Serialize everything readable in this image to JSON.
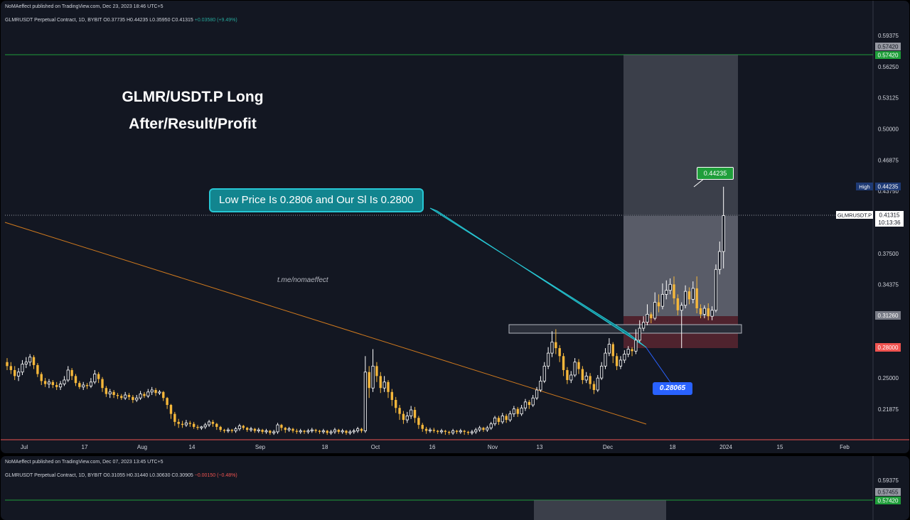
{
  "panel1": {
    "header": "NoMAeffect published on TradingView.com, Dec 23, 2023 18:46 UTC+5",
    "symbol_line": "GLMRUSDT Perpetual Contract, 1D, BYBIT",
    "ohlc": {
      "o": "O0.37735",
      "h": "H0.44235",
      "l": "L0.35950",
      "c": "C0.41315",
      "chg": "+0.03580 (+9.49%)"
    },
    "title_line1": "GLMR/USDT.P Long",
    "title_line2": "After/Result/Profit",
    "callout": "Low Price Is 0.2806 and Our Sl Is 0.2800",
    "telegram": "t.me/nomaeffect",
    "high_label": "0.44235",
    "low_label": "0.28065",
    "axis": {
      "ticks": [
        "0.59375",
        "0.56250",
        "0.53125",
        "0.50000",
        "0.46875",
        "0.43750",
        "0.37500",
        "0.34375",
        "0.25000",
        "0.21875"
      ],
      "badges": {
        "top_gray": "0.57420",
        "top_green": "0.57420",
        "high_tag": "High",
        "high_value": "0.44235",
        "symbol_tag": "GLMRUSDT.P",
        "last_price": "0.41315",
        "countdown": "10:13:36",
        "entry": "0.31260",
        "stop": "0.28000"
      }
    },
    "x_labels": [
      "Jul",
      "17",
      "Aug",
      "14",
      "Sep",
      "18",
      "Oct",
      "16",
      "Nov",
      "13",
      "Dec",
      "18",
      "2024",
      "15",
      "Feb"
    ]
  },
  "panel2": {
    "header": "NoMAeffect published on TradingView.com, Dec 07, 2023 13:45 UTC+5",
    "symbol_line": "GLMRUSDT Perpetual Contract, 1D, BYBIT",
    "ohlc": {
      "o": "O0.31055",
      "h": "H0.31440",
      "l": "L0.30630",
      "c": "C0.30905",
      "chg": "−0.00150 (−0.48%)"
    },
    "axis": {
      "t1": "0.59375",
      "b1": "0.57455",
      "b2": "0.57420"
    }
  },
  "colors": {
    "bg": "#131722",
    "up": "#ffffff",
    "down": "#f5b73b",
    "target": "#1f9e3a",
    "stop": "#ef5350",
    "trend": "#d07a1e",
    "callout": "#12858f"
  },
  "chart_data": {
    "type": "candlestick",
    "title": "",
    "y_range": [
      0.2,
      0.61
    ],
    "y_ticks": [
      0.59375,
      0.5625,
      0.53125,
      0.5,
      0.46875,
      0.4375,
      0.375,
      0.34375,
      0.25,
      0.21875
    ],
    "x_ticks": [
      "Jul",
      "17",
      "Aug",
      "14",
      "Sep",
      "18",
      "Oct",
      "16",
      "Nov",
      "13",
      "Dec",
      "18",
      "2024",
      "15",
      "Feb"
    ],
    "long_position": {
      "entry": 0.3126,
      "target": 0.5742,
      "stop": 0.28
    },
    "marked_high": 0.44235,
    "marked_low": 0.28065,
    "last_price": 0.41315,
    "candles": [
      [
        0.266,
        0.262,
        0.27,
        0.258
      ],
      [
        0.262,
        0.258,
        0.266,
        0.254
      ],
      [
        0.258,
        0.252,
        0.262,
        0.248
      ],
      [
        0.252,
        0.256,
        0.26,
        0.247
      ],
      [
        0.256,
        0.264,
        0.268,
        0.253
      ],
      [
        0.264,
        0.266,
        0.271,
        0.26
      ],
      [
        0.266,
        0.271,
        0.274,
        0.262
      ],
      [
        0.271,
        0.263,
        0.273,
        0.259
      ],
      [
        0.263,
        0.254,
        0.265,
        0.251
      ],
      [
        0.254,
        0.247,
        0.256,
        0.243
      ],
      [
        0.247,
        0.244,
        0.25,
        0.241
      ],
      [
        0.244,
        0.246,
        0.249,
        0.24
      ],
      [
        0.246,
        0.243,
        0.248,
        0.24
      ],
      [
        0.243,
        0.241,
        0.246,
        0.238
      ],
      [
        0.241,
        0.244,
        0.247,
        0.238
      ],
      [
        0.244,
        0.248,
        0.252,
        0.242
      ],
      [
        0.248,
        0.258,
        0.262,
        0.246
      ],
      [
        0.258,
        0.252,
        0.26,
        0.248
      ],
      [
        0.252,
        0.245,
        0.254,
        0.242
      ],
      [
        0.245,
        0.241,
        0.247,
        0.239
      ],
      [
        0.241,
        0.243,
        0.246,
        0.238
      ],
      [
        0.243,
        0.242,
        0.245,
        0.239
      ],
      [
        0.242,
        0.246,
        0.25,
        0.24
      ],
      [
        0.246,
        0.254,
        0.258,
        0.244
      ],
      [
        0.254,
        0.249,
        0.256,
        0.245
      ],
      [
        0.249,
        0.24,
        0.251,
        0.236
      ],
      [
        0.24,
        0.234,
        0.242,
        0.231
      ],
      [
        0.234,
        0.236,
        0.239,
        0.23
      ],
      [
        0.236,
        0.233,
        0.238,
        0.23
      ],
      [
        0.233,
        0.232,
        0.235,
        0.229
      ],
      [
        0.232,
        0.23,
        0.234,
        0.228
      ],
      [
        0.23,
        0.233,
        0.236,
        0.228
      ],
      [
        0.233,
        0.231,
        0.235,
        0.228
      ],
      [
        0.231,
        0.228,
        0.233,
        0.225
      ],
      [
        0.228,
        0.23,
        0.233,
        0.226
      ],
      [
        0.23,
        0.234,
        0.237,
        0.228
      ],
      [
        0.234,
        0.232,
        0.236,
        0.23
      ],
      [
        0.232,
        0.236,
        0.239,
        0.23
      ],
      [
        0.236,
        0.238,
        0.241,
        0.233
      ],
      [
        0.238,
        0.235,
        0.24,
        0.232
      ],
      [
        0.235,
        0.236,
        0.238,
        0.233
      ],
      [
        0.236,
        0.23,
        0.237,
        0.227
      ],
      [
        0.23,
        0.223,
        0.231,
        0.219
      ],
      [
        0.223,
        0.214,
        0.224,
        0.209
      ],
      [
        0.214,
        0.206,
        0.216,
        0.202
      ],
      [
        0.206,
        0.204,
        0.209,
        0.2
      ],
      [
        0.204,
        0.203,
        0.207,
        0.2
      ],
      [
        0.203,
        0.205,
        0.208,
        0.201
      ],
      [
        0.205,
        0.204,
        0.207,
        0.201
      ],
      [
        0.204,
        0.201,
        0.206,
        0.199
      ],
      [
        0.201,
        0.2,
        0.203,
        0.198
      ],
      [
        0.2,
        0.201,
        0.202,
        0.198
      ],
      [
        0.201,
        0.203,
        0.205,
        0.199
      ],
      [
        0.203,
        0.206,
        0.208,
        0.201
      ],
      [
        0.206,
        0.204,
        0.208,
        0.201
      ],
      [
        0.204,
        0.201,
        0.205,
        0.198
      ],
      [
        0.201,
        0.198,
        0.202,
        0.196
      ],
      [
        0.198,
        0.197,
        0.199,
        0.195
      ],
      [
        0.197,
        0.198,
        0.2,
        0.195
      ],
      [
        0.198,
        0.197,
        0.199,
        0.195
      ],
      [
        0.197,
        0.199,
        0.201,
        0.195
      ],
      [
        0.199,
        0.202,
        0.204,
        0.197
      ],
      [
        0.202,
        0.2,
        0.203,
        0.198
      ],
      [
        0.2,
        0.198,
        0.201,
        0.196
      ],
      [
        0.198,
        0.199,
        0.201,
        0.196
      ],
      [
        0.199,
        0.197,
        0.2,
        0.195
      ],
      [
        0.197,
        0.198,
        0.2,
        0.195
      ],
      [
        0.198,
        0.196,
        0.199,
        0.194
      ],
      [
        0.196,
        0.197,
        0.199,
        0.194
      ],
      [
        0.197,
        0.195,
        0.198,
        0.193
      ],
      [
        0.195,
        0.196,
        0.198,
        0.193
      ],
      [
        0.196,
        0.203,
        0.205,
        0.194
      ],
      [
        0.203,
        0.2,
        0.204,
        0.197
      ],
      [
        0.2,
        0.198,
        0.201,
        0.195
      ],
      [
        0.198,
        0.199,
        0.201,
        0.196
      ],
      [
        0.199,
        0.197,
        0.2,
        0.195
      ],
      [
        0.197,
        0.196,
        0.199,
        0.194
      ],
      [
        0.196,
        0.197,
        0.199,
        0.194
      ],
      [
        0.197,
        0.196,
        0.198,
        0.194
      ],
      [
        0.196,
        0.197,
        0.199,
        0.194
      ],
      [
        0.197,
        0.198,
        0.2,
        0.195
      ],
      [
        0.198,
        0.197,
        0.199,
        0.195
      ],
      [
        0.197,
        0.196,
        0.198,
        0.194
      ],
      [
        0.196,
        0.197,
        0.199,
        0.194
      ],
      [
        0.197,
        0.195,
        0.198,
        0.193
      ],
      [
        0.195,
        0.196,
        0.198,
        0.193
      ],
      [
        0.196,
        0.198,
        0.2,
        0.194
      ],
      [
        0.198,
        0.196,
        0.199,
        0.194
      ],
      [
        0.196,
        0.197,
        0.199,
        0.194
      ],
      [
        0.197,
        0.195,
        0.198,
        0.193
      ],
      [
        0.195,
        0.196,
        0.198,
        0.193
      ],
      [
        0.196,
        0.197,
        0.199,
        0.194
      ],
      [
        0.197,
        0.199,
        0.201,
        0.195
      ],
      [
        0.199,
        0.197,
        0.2,
        0.195
      ],
      [
        0.197,
        0.256,
        0.272,
        0.195
      ],
      [
        0.256,
        0.24,
        0.262,
        0.23
      ],
      [
        0.24,
        0.262,
        0.279,
        0.236
      ],
      [
        0.262,
        0.252,
        0.266,
        0.246
      ],
      [
        0.252,
        0.24,
        0.256,
        0.235
      ],
      [
        0.24,
        0.246,
        0.252,
        0.236
      ],
      [
        0.246,
        0.236,
        0.248,
        0.23
      ],
      [
        0.236,
        0.228,
        0.239,
        0.222
      ],
      [
        0.228,
        0.22,
        0.231,
        0.215
      ],
      [
        0.22,
        0.214,
        0.223,
        0.208
      ],
      [
        0.214,
        0.208,
        0.217,
        0.204
      ],
      [
        0.208,
        0.212,
        0.216,
        0.205
      ],
      [
        0.212,
        0.218,
        0.222,
        0.209
      ],
      [
        0.218,
        0.21,
        0.221,
        0.205
      ],
      [
        0.21,
        0.203,
        0.212,
        0.199
      ],
      [
        0.203,
        0.199,
        0.205,
        0.196
      ],
      [
        0.199,
        0.197,
        0.201,
        0.194
      ],
      [
        0.197,
        0.198,
        0.2,
        0.195
      ],
      [
        0.198,
        0.197,
        0.2,
        0.195
      ],
      [
        0.197,
        0.196,
        0.198,
        0.194
      ],
      [
        0.196,
        0.197,
        0.199,
        0.194
      ],
      [
        0.197,
        0.196,
        0.198,
        0.193
      ],
      [
        0.196,
        0.195,
        0.197,
        0.193
      ],
      [
        0.195,
        0.197,
        0.199,
        0.193
      ],
      [
        0.197,
        0.196,
        0.198,
        0.194
      ],
      [
        0.196,
        0.197,
        0.199,
        0.194
      ],
      [
        0.197,
        0.196,
        0.198,
        0.193
      ],
      [
        0.196,
        0.195,
        0.197,
        0.193
      ],
      [
        0.195,
        0.196,
        0.198,
        0.193
      ],
      [
        0.196,
        0.198,
        0.2,
        0.194
      ],
      [
        0.198,
        0.2,
        0.202,
        0.196
      ],
      [
        0.2,
        0.198,
        0.201,
        0.196
      ],
      [
        0.198,
        0.2,
        0.202,
        0.196
      ],
      [
        0.2,
        0.204,
        0.206,
        0.198
      ],
      [
        0.204,
        0.21,
        0.212,
        0.202
      ],
      [
        0.21,
        0.206,
        0.212,
        0.203
      ],
      [
        0.206,
        0.212,
        0.215,
        0.204
      ],
      [
        0.212,
        0.208,
        0.214,
        0.205
      ],
      [
        0.208,
        0.214,
        0.217,
        0.206
      ],
      [
        0.214,
        0.219,
        0.222,
        0.211
      ],
      [
        0.219,
        0.214,
        0.221,
        0.211
      ],
      [
        0.214,
        0.22,
        0.223,
        0.212
      ],
      [
        0.22,
        0.226,
        0.229,
        0.217
      ],
      [
        0.226,
        0.223,
        0.228,
        0.219
      ],
      [
        0.223,
        0.23,
        0.233,
        0.221
      ],
      [
        0.23,
        0.238,
        0.241,
        0.228
      ],
      [
        0.238,
        0.247,
        0.252,
        0.236
      ],
      [
        0.247,
        0.262,
        0.266,
        0.245
      ],
      [
        0.262,
        0.275,
        0.281,
        0.259
      ],
      [
        0.275,
        0.286,
        0.297,
        0.271
      ],
      [
        0.286,
        0.28,
        0.299,
        0.274
      ],
      [
        0.28,
        0.272,
        0.283,
        0.266
      ],
      [
        0.272,
        0.258,
        0.275,
        0.252
      ],
      [
        0.258,
        0.248,
        0.261,
        0.244
      ],
      [
        0.248,
        0.253,
        0.257,
        0.245
      ],
      [
        0.253,
        0.266,
        0.27,
        0.251
      ],
      [
        0.266,
        0.259,
        0.269,
        0.254
      ],
      [
        0.259,
        0.248,
        0.262,
        0.244
      ],
      [
        0.248,
        0.252,
        0.256,
        0.245
      ],
      [
        0.252,
        0.244,
        0.255,
        0.239
      ],
      [
        0.244,
        0.238,
        0.247,
        0.234
      ],
      [
        0.238,
        0.25,
        0.253,
        0.236
      ],
      [
        0.25,
        0.262,
        0.266,
        0.248
      ],
      [
        0.262,
        0.275,
        0.28,
        0.259
      ],
      [
        0.275,
        0.284,
        0.29,
        0.272
      ],
      [
        0.284,
        0.272,
        0.286,
        0.265
      ],
      [
        0.272,
        0.262,
        0.275,
        0.258
      ],
      [
        0.262,
        0.268,
        0.272,
        0.259
      ],
      [
        0.268,
        0.274,
        0.278,
        0.265
      ],
      [
        0.274,
        0.279,
        0.282,
        0.271
      ],
      [
        0.279,
        0.277,
        0.281,
        0.272
      ],
      [
        0.277,
        0.288,
        0.299,
        0.274
      ],
      [
        0.288,
        0.3,
        0.308,
        0.286
      ],
      [
        0.3,
        0.306,
        0.312,
        0.297
      ],
      [
        0.306,
        0.314,
        0.324,
        0.303
      ],
      [
        0.314,
        0.31,
        0.316,
        0.305
      ],
      [
        0.31,
        0.326,
        0.336,
        0.308
      ],
      [
        0.326,
        0.322,
        0.334,
        0.316
      ],
      [
        0.322,
        0.334,
        0.345,
        0.319
      ],
      [
        0.334,
        0.338,
        0.348,
        0.329
      ],
      [
        0.338,
        0.344,
        0.35,
        0.334
      ],
      [
        0.344,
        0.33,
        0.352,
        0.324
      ],
      [
        0.33,
        0.318,
        0.334,
        0.313
      ],
      [
        0.318,
        0.323,
        0.326,
        0.28
      ],
      [
        0.323,
        0.337,
        0.343,
        0.32
      ],
      [
        0.337,
        0.329,
        0.341,
        0.324
      ],
      [
        0.329,
        0.34,
        0.347,
        0.325
      ],
      [
        0.34,
        0.32,
        0.352,
        0.315
      ],
      [
        0.32,
        0.314,
        0.324,
        0.31
      ],
      [
        0.314,
        0.32,
        0.323,
        0.31
      ],
      [
        0.32,
        0.312,
        0.325,
        0.308
      ],
      [
        0.312,
        0.318,
        0.322,
        0.308
      ],
      [
        0.318,
        0.359,
        0.364,
        0.316
      ],
      [
        0.359,
        0.377,
        0.387,
        0.354
      ],
      [
        0.377,
        0.413,
        0.442,
        0.36
      ]
    ]
  }
}
